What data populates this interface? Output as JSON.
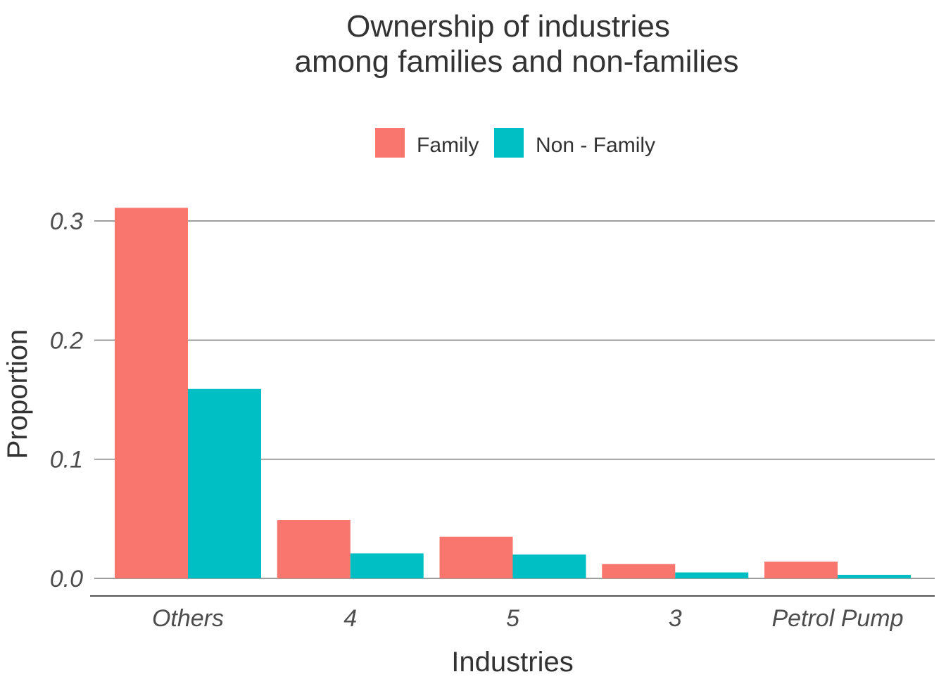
{
  "chart_data": {
    "type": "bar",
    "title_lines": [
      "Ownership of industries",
      "among families and non-families"
    ],
    "xlabel": "Industries",
    "ylabel": "Proportion",
    "categories": [
      "Others",
      "4",
      "5",
      "3",
      "Petrol Pump"
    ],
    "series": [
      {
        "name": "Family",
        "color": "#F8766D",
        "values": [
          0.311,
          0.049,
          0.035,
          0.012,
          0.014
        ]
      },
      {
        "name": "Non - Family",
        "color": "#00BFC4",
        "values": [
          0.159,
          0.021,
          0.02,
          0.005,
          0.003
        ]
      }
    ],
    "ylim": [
      0,
      0.31
    ],
    "yticks": [
      0.0,
      0.1,
      0.2,
      0.3
    ],
    "ytick_labels": [
      "0.0",
      "0.1",
      "0.2",
      "0.3"
    ],
    "grid": true,
    "legend_position": "top"
  }
}
